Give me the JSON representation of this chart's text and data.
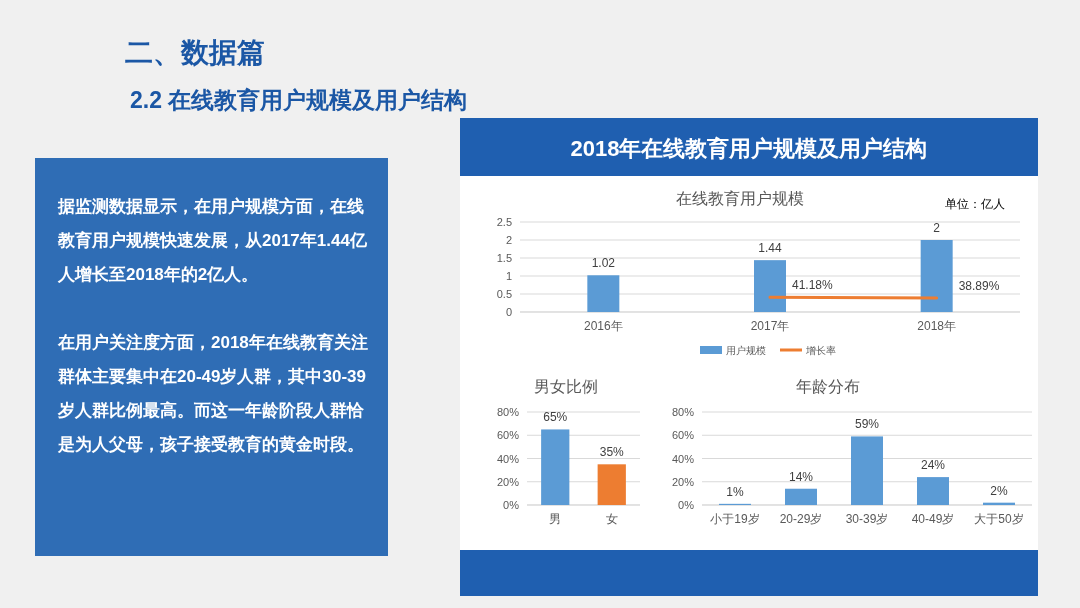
{
  "chart_data": [
    {
      "type": "other",
      "title": "二、数据篇",
      "subtitle": "2.2 在线教育用户规模及用户结构",
      "annotations": [
        "2018年在线教育用户规模及用户结构",
        "据监测数据显示，在用户规模方面，在线教育用户规模快速发展，从2017年1.44亿人增长至2018年的2亿人。",
        "在用户关注度方面，2018年在线教育关注群体主要集中在20-49岁人群，其中30-39岁人群比例最高。而这一年龄阶段人群恰是为人父母，孩子接受教育的黄金时段。"
      ]
    },
    {
      "type": "bar",
      "title": "在线教育用户规模",
      "annotations": [
        "单位：亿人"
      ],
      "categories": [
        "2016年",
        "2017年",
        "2018年"
      ],
      "series": [
        {
          "name": "用户规模",
          "color": "#5b9bd5",
          "values": [
            1.02,
            1.44,
            2
          ],
          "value_labels": [
            "1.02",
            "1.44",
            "2"
          ]
        },
        {
          "name": "增长率",
          "type": "line",
          "color": "#ed7d31",
          "values": [
            null,
            0.4118,
            0.3889
          ],
          "value_labels": [
            null,
            "41.18%",
            "38.89%"
          ]
        }
      ],
      "ylim": [
        0,
        2.5
      ],
      "yticks": [
        0,
        0.5,
        1,
        1.5,
        2,
        2.5
      ],
      "grid": "y",
      "legend": "bottom"
    },
    {
      "type": "bar",
      "title": "男女比例",
      "categories": [
        "男",
        "女"
      ],
      "values": [
        65,
        35
      ],
      "colors": [
        "#5b9bd5",
        "#ed7d31"
      ],
      "value_labels": [
        "65%",
        "35%"
      ],
      "ylim": [
        0,
        80
      ],
      "yticks": [
        {
          "value": 0,
          "label": "0%"
        },
        {
          "value": 20,
          "label": "20%"
        },
        {
          "value": 40,
          "label": "40%"
        },
        {
          "value": 60,
          "label": "60%"
        },
        {
          "value": 80,
          "label": "80%"
        }
      ],
      "grid": "y"
    },
    {
      "type": "bar",
      "title": "年龄分布",
      "categories": [
        "小于19岁",
        "20-29岁",
        "30-39岁",
        "40-49岁",
        "大于50岁"
      ],
      "values": [
        1,
        14,
        59,
        24,
        2
      ],
      "colors": [
        "#5b9bd5",
        "#5b9bd5",
        "#5b9bd5",
        "#5b9bd5",
        "#5b9bd5"
      ],
      "value_labels": [
        "1%",
        "14%",
        "59%",
        "24%",
        "2%"
      ],
      "ylim": [
        0,
        80
      ],
      "yticks": [
        {
          "value": 0,
          "label": "0%"
        },
        {
          "value": 20,
          "label": "20%"
        },
        {
          "value": 40,
          "label": "40%"
        },
        {
          "value": 60,
          "label": "60%"
        },
        {
          "value": 80,
          "label": "80%"
        }
      ],
      "grid": "y"
    }
  ]
}
